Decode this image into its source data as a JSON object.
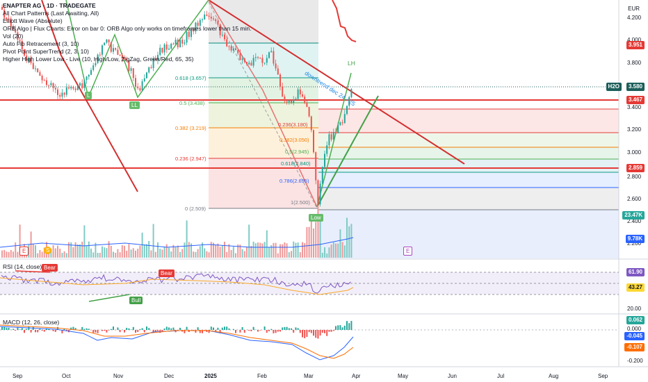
{
  "legend": {
    "title": "ENAPTER AG · 1D · TRADEGATE",
    "indicators": [
      "All Chart Patterns (Last Awaiting, All)",
      "Elliott Wave (Absolute)",
      "ORB Algo | Flux Charts: Error on bar 0: ORB Algo only works on timeframes lower than 15 min.",
      "Vol (20)",
      "Auto Fib Retracement (3, 10)",
      "Pivot Point SuperTrend (2, 3, 10)",
      "Higher High Lower Low - Live (10, High/Low, ZigZag, Green/Red, 65, 35)"
    ]
  },
  "currency": "EUR",
  "price_axis": [
    "4.200",
    "4.000",
    "3.800",
    "3.400",
    "3.200",
    "3.000",
    "2.800",
    "2.600",
    "2.400",
    "2.200"
  ],
  "price_tags": [
    {
      "text": "3.951",
      "color": "#e53935"
    },
    {
      "text": "3.580",
      "color": "#1b5e5a"
    },
    {
      "text": "H2O",
      "color": "#1b5e5a"
    },
    {
      "text": "3.467",
      "color": "#e53935"
    },
    {
      "text": "2.859",
      "color": "#e53935"
    },
    {
      "text": "23.47K",
      "color": "#26a69a"
    },
    {
      "text": "9.78K",
      "color": "#2962ff"
    }
  ],
  "fib_left": [
    {
      "label": "0.618 (3.657)",
      "color": "#089981"
    },
    {
      "label": "0.5 (3.438)",
      "color": "#4caf50"
    },
    {
      "label": "0.382 (3.219)",
      "color": "#f57c00"
    },
    {
      "label": "0.236 (2.947)",
      "color": "#e53935"
    },
    {
      "label": "0 (2.509)",
      "color": "#787b86"
    }
  ],
  "fib_right": [
    {
      "label": "0.236(3.180)",
      "color": "#e53935"
    },
    {
      "label": "0.382(3.050)",
      "color": "#f57c00"
    },
    {
      "label": "0.5(2.945)",
      "color": "#4caf50"
    },
    {
      "label": "0.618(2.840)",
      "color": "#089981"
    },
    {
      "label": "0.786(2.695)",
      "color": "#2962ff"
    },
    {
      "label": "1(2.500)",
      "color": "#787b86"
    }
  ],
  "annotations": {
    "downtrend": "downtrend dec 24 - 25",
    "lh": "LH",
    "l1": "L",
    "ll": "LL",
    "low": "Low",
    "e1": "E",
    "e2": "E",
    "s1": "S"
  },
  "rsi": {
    "legend": "RSI (14, close)",
    "value": "61.90",
    "ma": "43.27",
    "axis": "20.00",
    "bear1": "Bear",
    "bear2": "Bear",
    "bull": "Bull"
  },
  "macd": {
    "legend": "MACD (12, 26, close)",
    "hist": "0.062",
    "zero": "0.000",
    "macd": "-0.045",
    "signal": "-0.107",
    "axis": "-0.200"
  },
  "dates": [
    "Sep",
    "Oct",
    "Nov",
    "Dec",
    "2025",
    "Feb",
    "Mar",
    "Apr",
    "May",
    "Jun",
    "Jul",
    "Aug",
    "Sep"
  ]
}
